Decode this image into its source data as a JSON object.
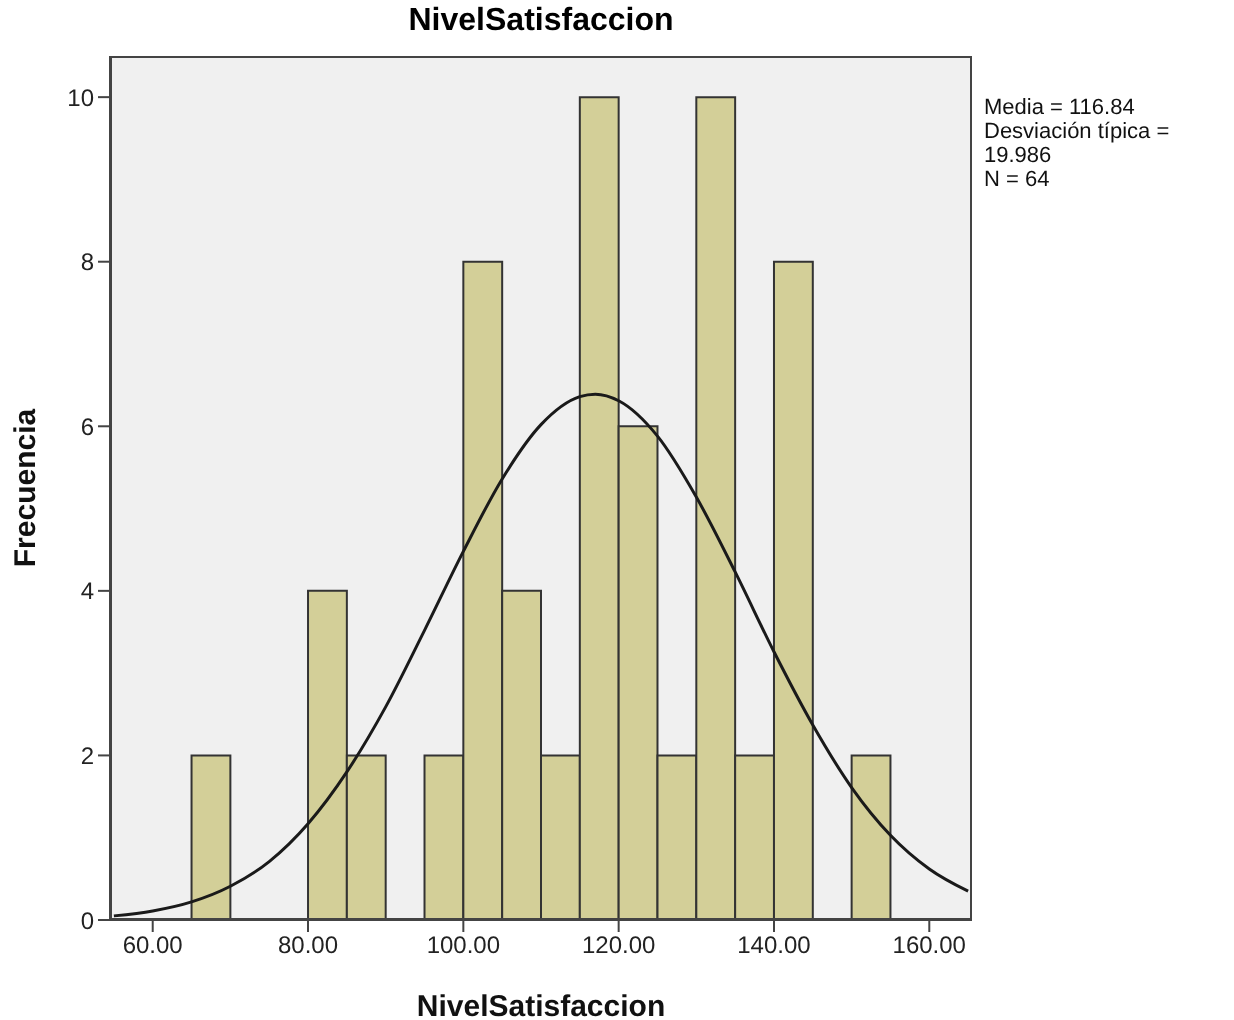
{
  "chart_data": {
    "type": "histogram",
    "title": "NivelSatisfaccion",
    "xlabel": "NivelSatisfaccion",
    "ylabel": "Frecuencia",
    "annotations": [
      "Media = 116.84",
      "Desviación típica = 19.986",
      "N = 64"
    ],
    "bins": [
      65,
      70,
      75,
      80,
      85,
      90,
      95,
      100,
      105,
      110,
      115,
      120,
      125,
      130,
      135,
      140,
      145,
      150,
      155
    ],
    "values": [
      2,
      0,
      0,
      4,
      2,
      0,
      2,
      8,
      4,
      2,
      10,
      6,
      2,
      10,
      2,
      8,
      0,
      2
    ],
    "color": "#d3cf98",
    "series": [
      {
        "type": "line",
        "color": "#1a1a1a",
        "x": [
          55,
          60,
          65,
          70,
          75,
          80,
          85,
          90,
          95,
          100,
          105,
          110,
          115,
          117,
          120,
          125,
          130,
          135,
          140,
          145,
          150,
          155,
          160,
          165
        ],
        "values": [
          0.05,
          0.11,
          0.22,
          0.41,
          0.71,
          1.17,
          1.8,
          2.59,
          3.52,
          4.48,
          5.36,
          6.02,
          6.36,
          6.39,
          6.31,
          5.88,
          5.14,
          4.23,
          3.26,
          2.37,
          1.61,
          1.03,
          0.62,
          0.35
        ]
      }
    ],
    "marker": "none",
    "xlim": [
      54.5,
      165.5
    ],
    "xticks": [
      {
        "value": 60,
        "label": "60.00"
      },
      {
        "value": 80,
        "label": "80.00"
      },
      {
        "value": 100,
        "label": "100.00"
      },
      {
        "value": 120,
        "label": "120.00"
      },
      {
        "value": 140,
        "label": "140.00"
      },
      {
        "value": 160,
        "label": "160.00"
      }
    ],
    "ylim": [
      0,
      10.5
    ],
    "yticks": [
      0,
      2,
      4,
      6,
      8,
      10
    ]
  }
}
